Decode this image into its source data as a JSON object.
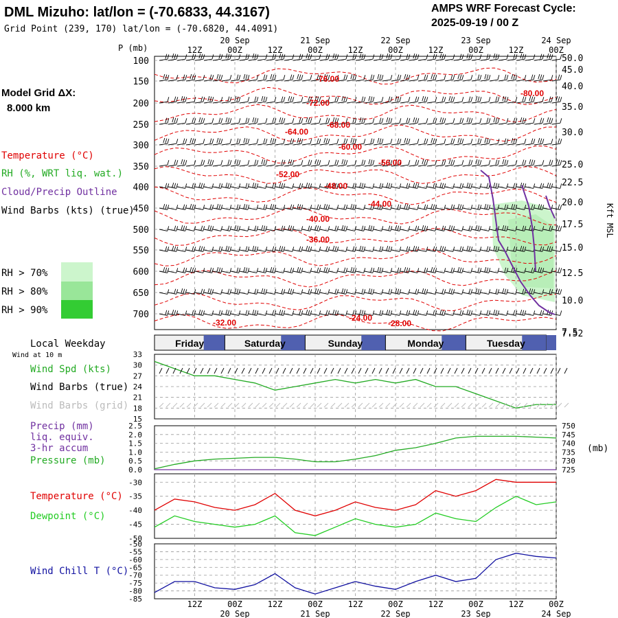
{
  "header": {
    "title": "DML Mizuho:  lat/lon = (-70.6833, 44.3167)",
    "grid_point": "Grid Point (239, 170) lat/lon = (-70.6820, 44.4091)",
    "cycle_label": "AMPS WRF Forecast Cycle:",
    "cycle_value": "2025-09-19 / 00  Z"
  },
  "model_grid": {
    "label": "Model Grid ΔX:",
    "value": "8.000 km"
  },
  "legend": {
    "temperature": "Temperature (°C)",
    "rh": "RH (%, WRT liq. wat.)",
    "cloud": "Cloud/Precip Outline",
    "wind": "Wind Barbs (kts) (true)",
    "rh70": "RH > 70%",
    "rh80": "RH > 80%",
    "rh90": "RH > 90%"
  },
  "colors": {
    "temperature": "#e00000",
    "rh70": "#ccf5cc",
    "rh80": "#99e699",
    "rh90": "#33cc33",
    "cloud": "#7030a0",
    "wind_speed": "#22aa22",
    "pressure": "#22aa22",
    "dewpoint": "#22cc22",
    "wind_chill": "#1010a0",
    "weekday_band": "#5060b0"
  },
  "time_axis": {
    "top_hour_labels": [
      "12Z",
      "00Z",
      "12Z",
      "00Z",
      "12Z",
      "00Z",
      "12Z",
      "00Z",
      "12Z",
      "00Z"
    ],
    "top_date_labels": [
      "20 Sep",
      "21 Sep",
      "22 Sep",
      "23 Sep",
      "24 Sep"
    ],
    "bottom_hour_labels": [
      "12Z",
      "00Z",
      "12Z",
      "00Z",
      "12Z",
      "00Z",
      "12Z",
      "00Z",
      "12Z",
      "00Z"
    ],
    "bottom_date_labels": [
      "20 Sep",
      "21 Sep",
      "22 Sep",
      "23 Sep",
      "24 Sep"
    ]
  },
  "weekday": {
    "label": "Local Weekday",
    "sublabel": "Wind at 10 m",
    "days": [
      "Friday",
      "Saturday",
      "Sunday",
      "Monday",
      "Tuesday"
    ]
  },
  "chart_data": [
    {
      "type": "line",
      "panel": "vertical cross-section",
      "ylabel_left": "P (mb)",
      "pressure_ticks": [
        "100",
        "150",
        "200",
        "250",
        "300",
        "350",
        "400",
        "450",
        "500",
        "550",
        "600",
        "650",
        "700"
      ],
      "ylabel_right": "Kft MSL",
      "height_ticks": [
        "50.0",
        "45.0",
        "40.0",
        "35.0",
        "30.0",
        "25.0",
        "22.5",
        "20.0",
        "17.5",
        "15.0",
        "12.5",
        "10.0",
        "7.5",
        "7.52"
      ],
      "temperature_contour_labels": [
        "-76.00",
        "-80.00",
        "-72.00",
        "-68.00",
        "-64.00",
        "-60.00",
        "-56.00",
        "-52.00",
        "-48.00",
        "-44.00",
        "-40.00",
        "-36.00",
        "-32.00",
        "-24.00",
        "-28.00"
      ]
    },
    {
      "type": "line",
      "panel": "surface wind",
      "series": [
        {
          "name": "Wind Spd (kts)",
          "x": [
            0,
            6,
            12,
            18,
            24,
            30,
            36,
            42,
            48,
            54,
            60,
            66,
            72,
            78,
            84,
            90,
            96,
            102,
            108,
            114,
            120
          ],
          "values": [
            31,
            29,
            27,
            27,
            26,
            25,
            23,
            24,
            25,
            26,
            25,
            26,
            25,
            26,
            24,
            24,
            22,
            20,
            18,
            19,
            19
          ]
        }
      ],
      "y_ticks": [
        "33",
        "30",
        "27",
        "24",
        "21",
        "18",
        "15"
      ],
      "ylim": [
        15,
        33
      ],
      "labels": {
        "speed": "Wind Spd (kts)",
        "barbs_true": "Wind Barbs (true)",
        "barbs_grid": "Wind Barbs (grid)"
      }
    },
    {
      "type": "line",
      "panel": "precip and pressure",
      "series": [
        {
          "name": "Pressure (mb)",
          "x": [
            0,
            6,
            12,
            18,
            24,
            30,
            36,
            42,
            48,
            54,
            60,
            66,
            72,
            78,
            84,
            90,
            96,
            102,
            108,
            114,
            120
          ],
          "values": [
            725.5,
            728,
            730,
            731,
            731.5,
            732,
            732,
            731,
            729.5,
            729.5,
            731,
            733,
            736,
            737.5,
            740,
            743,
            744,
            744,
            744,
            743.5,
            743
          ]
        },
        {
          "name": "Precip (mm)",
          "x": [
            0,
            120
          ],
          "values": [
            0,
            0
          ]
        }
      ],
      "y_ticks_left": [
        "2.5",
        "2.0",
        "1.5",
        "1.0",
        "0.5",
        "0.0"
      ],
      "y_ticks_right": [
        "750",
        "745",
        "740",
        "735",
        "730",
        "725"
      ],
      "ylim_left": [
        0,
        2.5
      ],
      "ylim_right": [
        725,
        750
      ],
      "unit_right": "(mb)",
      "labels": {
        "precip": "Precip (mm)",
        "liq": "liq. equiv.",
        "accum": "3-hr accum",
        "pressure": "Pressure (mb)"
      }
    },
    {
      "type": "line",
      "panel": "temperature and dewpoint",
      "series": [
        {
          "name": "Temperature (°C)",
          "x": [
            0,
            6,
            12,
            18,
            24,
            30,
            36,
            42,
            48,
            54,
            60,
            66,
            72,
            78,
            84,
            90,
            96,
            102,
            108,
            114,
            120
          ],
          "values": [
            -40,
            -36,
            -37,
            -39,
            -40,
            -38,
            -34,
            -40,
            -42,
            -40,
            -37,
            -39,
            -40,
            -38,
            -33,
            -35,
            -33,
            -29,
            -30,
            -30,
            -30
          ]
        },
        {
          "name": "Dewpoint (°C)",
          "x": [
            0,
            6,
            12,
            18,
            24,
            30,
            36,
            42,
            48,
            54,
            60,
            66,
            72,
            78,
            84,
            90,
            96,
            102,
            108,
            114,
            120
          ],
          "values": [
            -46,
            -42,
            -44,
            -45,
            -46,
            -45,
            -42,
            -48,
            -49,
            -46,
            -43,
            -45,
            -46,
            -45,
            -41,
            -43,
            -44,
            -39,
            -35,
            -38,
            -37
          ]
        }
      ],
      "y_ticks": [
        "-30",
        "-35",
        "-40",
        "-45",
        "-50"
      ],
      "ylim": [
        -50,
        -27
      ]
    },
    {
      "type": "line",
      "panel": "wind chill",
      "series": [
        {
          "name": "Wind Chill T (°C)",
          "x": [
            0,
            6,
            12,
            18,
            24,
            30,
            36,
            42,
            48,
            54,
            60,
            66,
            72,
            78,
            84,
            90,
            96,
            102,
            108,
            114,
            120
          ],
          "values": [
            -81,
            -74,
            -74,
            -78,
            -79,
            -76,
            -69,
            -78,
            -82,
            -78,
            -74,
            -77,
            -79,
            -74,
            -70,
            -74,
            -72,
            -60,
            -56,
            -58,
            -59
          ]
        }
      ],
      "y_ticks": [
        "-50",
        "-55",
        "-60",
        "-65",
        "-70",
        "-75",
        "-80",
        "-85"
      ],
      "ylim": [
        -85,
        -50
      ]
    }
  ]
}
